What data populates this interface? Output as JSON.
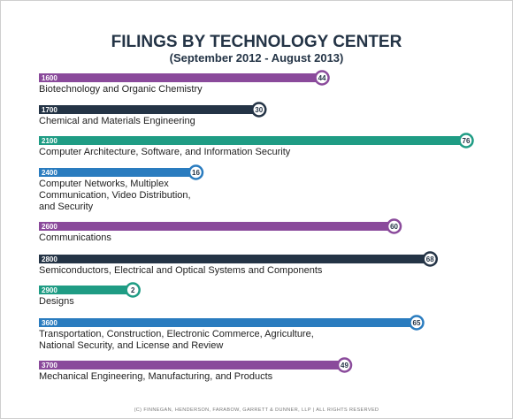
{
  "chart_data": {
    "type": "bar",
    "title": "FILINGS BY TECHNOLOGY CENTER",
    "subtitle": "(September 2012 - August 2013)",
    "categories": [
      "1600",
      "1700",
      "2100",
      "2400",
      "2600",
      "2800",
      "2900",
      "3600",
      "3700"
    ],
    "descriptions": [
      [
        "Biotechnology and Organic Chemistry"
      ],
      [
        "Chemical and Materials Engineering"
      ],
      [
        "Computer Architecture, Software, and Information Security"
      ],
      [
        "Computer Networks, Multiplex",
        "Communication, Video Distribution,",
        "and Security"
      ],
      [
        "Communications"
      ],
      [
        "Semiconductors, Electrical and Optical Systems and Components"
      ],
      [
        "Designs"
      ],
      [
        "Transportation, Construction, Electronic Commerce,  Agriculture,",
        "National Security, and License and Review"
      ],
      [
        "Mechanical Engineering, Manufacturing, and Products"
      ]
    ],
    "values": [
      44,
      30,
      76,
      16,
      60,
      68,
      2,
      65,
      49
    ],
    "colors": [
      "#8a4a9b",
      "#243446",
      "#1f9c84",
      "#2a7cbf",
      "#8a4a9b",
      "#243446",
      "#1f9c84",
      "#2a7cbf",
      "#8a4a9b"
    ],
    "footer": "(C) FINNEGAN, HENDERSON, FARABOW, GARRETT & DUNNER, LLP | ALL RIGHTS RESERVED"
  }
}
